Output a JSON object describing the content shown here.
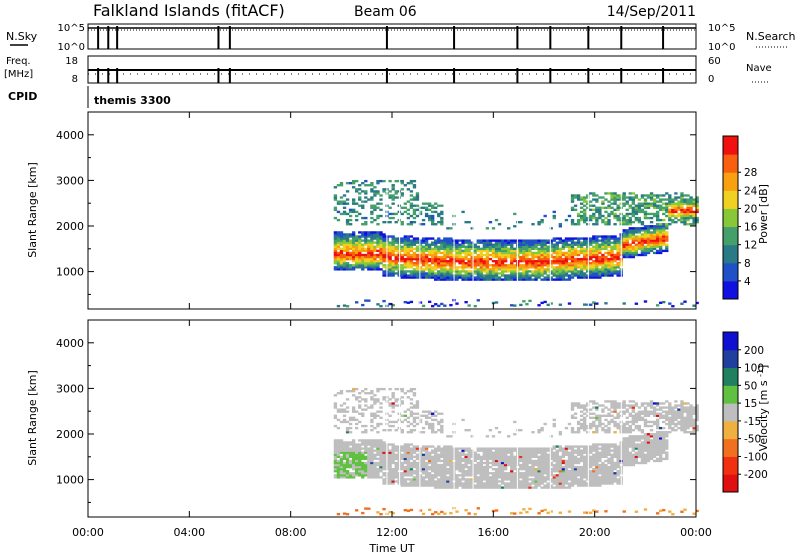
{
  "header": {
    "title": "Falkland Islands (fitACF)",
    "beam": "Beam 06",
    "date": "14/Sep/2011"
  },
  "top_panels": {
    "nsky_label": "N.Sky",
    "nsky_ticks": [
      "10^5",
      "10^0"
    ],
    "nsearch_label": "N.Search",
    "nsearch_ticks": [
      "10^5",
      "10^0"
    ],
    "freq_label": "Freq.",
    "freq_unit": "[MHz]",
    "freq_ticks": [
      "18",
      "8"
    ],
    "nave_label": "Nave",
    "nave_ticks": [
      "60",
      "0"
    ],
    "cpid_label": "CPID",
    "cpid_value": "themis 3300",
    "marker_hours": [
      0.4,
      0.8,
      1.15,
      5.15,
      5.6,
      11.8,
      14.45,
      16.95,
      18.25,
      19.75,
      21.05,
      22.7
    ]
  },
  "colors": {
    "power_scale": [
      "#1010e0",
      "#2050c8",
      "#2a7a86",
      "#43a06a",
      "#88c838",
      "#f0d020",
      "#f8a010",
      "#f86010",
      "#f01010"
    ],
    "velocity_scale": [
      "#e01010",
      "#f03010",
      "#f07020",
      "#f0b040",
      "#bebebe",
      "#60c040",
      "#208060",
      "#2040a0",
      "#1010d0"
    ],
    "ground_scatter": "#bebebe"
  },
  "chart_data": [
    {
      "type": "heatmap",
      "name": "power",
      "xlabel": "",
      "ylabel": "Slant Range [km]",
      "xlim": [
        0,
        24
      ],
      "ylim": [
        180,
        4500
      ],
      "yticks": [
        1000,
        2000,
        3000,
        4000
      ],
      "colorbar_label": "Power [dB]",
      "colorbar_range": [
        0,
        32
      ],
      "colorbar_ticks": [
        4,
        8,
        12,
        16,
        20,
        24,
        28
      ]
    },
    {
      "type": "heatmap",
      "name": "velocity",
      "xlabel": "Time UT",
      "ylabel": "Slant Range [km]",
      "xlim": [
        0,
        24
      ],
      "ylim": [
        180,
        4500
      ],
      "yticks": [
        1000,
        2000,
        3000,
        4000
      ],
      "xtick_labels": [
        "00:00",
        "04:00",
        "08:00",
        "12:00",
        "16:00",
        "20:00",
        "00:00"
      ],
      "colorbar_label": "Velocity [m s^-1]",
      "colorbar_ticks": [
        200,
        100,
        50,
        15,
        -15,
        -50,
        -100,
        -200
      ]
    }
  ]
}
